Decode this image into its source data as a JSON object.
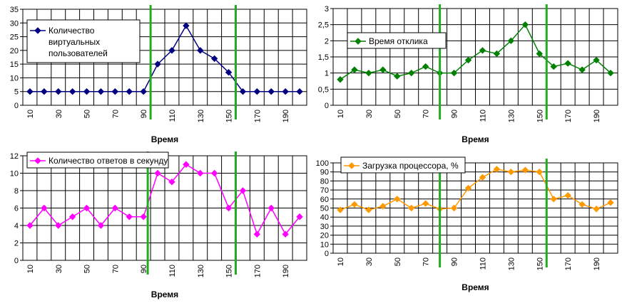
{
  "chart_data": [
    {
      "type": "line",
      "legend": [
        "Количество",
        "виртуальных",
        "пользователей"
      ],
      "xlabel": "Время",
      "x_ticks": [
        "10",
        "30",
        "50",
        "70",
        "90",
        "110",
        "130",
        "150",
        "170",
        "190"
      ],
      "ylim": [
        0,
        35
      ],
      "y_ticks": [
        "0",
        "5",
        "10",
        "15",
        "20",
        "25",
        "30",
        "35"
      ],
      "color": "#000080",
      "marker": "diamond",
      "values": [
        5,
        5,
        5,
        5,
        5,
        5,
        5,
        5,
        5,
        15,
        20,
        29,
        20,
        17,
        12,
        5,
        5,
        5,
        5,
        5
      ],
      "vlines": [
        9,
        15
      ],
      "vline_color": "#22aa22",
      "legend_pos": "top-left"
    },
    {
      "type": "line",
      "legend": [
        "Время отклика"
      ],
      "xlabel": "Время",
      "x_ticks": [
        "10",
        "30",
        "50",
        "70",
        "90",
        "110",
        "130",
        "150",
        "170",
        "190"
      ],
      "ylim": [
        0,
        3
      ],
      "y_ticks": [
        "0",
        "0,5",
        "1",
        "1,5",
        "2",
        "2,5",
        "3"
      ],
      "color": "#008000",
      "marker": "diamond",
      "values": [
        0.8,
        1.1,
        1.0,
        1.1,
        0.9,
        1.0,
        1.2,
        1.0,
        1.0,
        1.4,
        1.7,
        1.6,
        2.0,
        2.5,
        1.6,
        1.2,
        1.3,
        1.1,
        1.4,
        1.0
      ],
      "vlines": [
        7.5,
        15
      ],
      "vline_color": "#22aa22",
      "legend_pos": "top-left"
    },
    {
      "type": "line",
      "legend": [
        "Количество ответов в секунду"
      ],
      "xlabel": "Время",
      "x_ticks": [
        "10",
        "30",
        "50",
        "70",
        "90",
        "110",
        "130",
        "150",
        "170",
        "190"
      ],
      "ylim": [
        0,
        12
      ],
      "y_ticks": [
        "0",
        "2",
        "4",
        "6",
        "8",
        "10",
        "12"
      ],
      "color": "#ff00ff",
      "marker": "diamond",
      "values": [
        4,
        6,
        4,
        5,
        6,
        4,
        6,
        5,
        5,
        10,
        9,
        11,
        10,
        10,
        6,
        8,
        3,
        6,
        3,
        5
      ],
      "vlines": [
        8.8,
        15
      ],
      "vline_color": "#22aa22",
      "legend_pos": "top-left"
    },
    {
      "type": "line",
      "legend": [
        "Загрузка процессора, %"
      ],
      "xlabel": "Время",
      "x_ticks": [
        "10",
        "30",
        "50",
        "70",
        "90",
        "110",
        "130",
        "150",
        "170",
        "190"
      ],
      "ylim": [
        0,
        100
      ],
      "y_ticks": [
        "0",
        "10",
        "20",
        "30",
        "40",
        "50",
        "60",
        "70",
        "80",
        "90",
        "100"
      ],
      "color": "#ff9900",
      "marker": "diamond",
      "values": [
        48,
        54,
        48,
        52,
        60,
        50,
        55,
        49,
        50,
        72,
        84,
        93,
        90,
        92,
        90,
        60,
        64,
        54,
        49,
        56
      ],
      "vlines": [
        7.5,
        15
      ],
      "vline_color": "#22aa22",
      "legend_pos": "top-left"
    }
  ]
}
